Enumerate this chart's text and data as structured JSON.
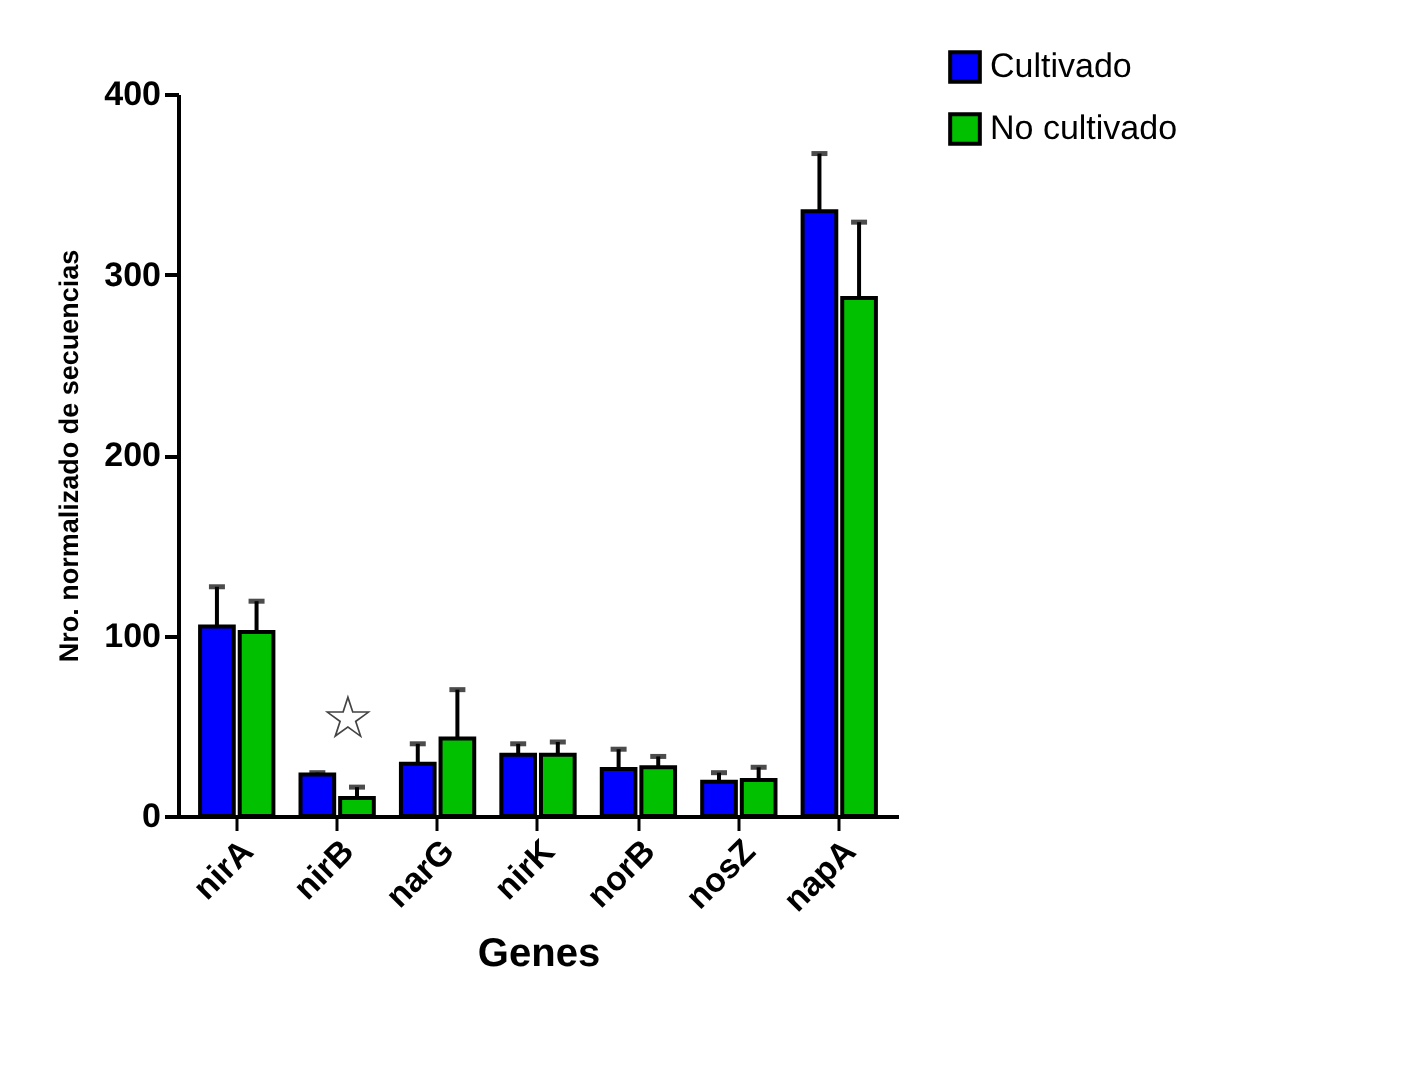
{
  "chart_data": {
    "type": "bar",
    "xlabel": "Genes",
    "ylabel": "Nro. normalizado de secuencias",
    "categories": [
      "nirA",
      "nirB",
      "narG",
      "nirK",
      "norB",
      "nosZ",
      "napA"
    ],
    "series": [
      {
        "name": "Cultivado",
        "color": "#0000ff",
        "values": [
          105,
          23,
          29,
          34,
          26,
          19,
          335
        ],
        "errors": [
          [
            105,
            127
          ],
          [
            23,
            24
          ],
          [
            29,
            40
          ],
          [
            34,
            40
          ],
          [
            26,
            37
          ],
          [
            19,
            24
          ],
          [
            335,
            367
          ]
        ]
      },
      {
        "name": "No cultivado",
        "color": "#00c000",
        "values": [
          102,
          10,
          43,
          34,
          27,
          20,
          287
        ],
        "errors": [
          [
            102,
            119
          ],
          [
            10,
            16
          ],
          [
            43,
            70
          ],
          [
            34,
            41
          ],
          [
            27,
            33
          ],
          [
            20,
            27
          ],
          [
            287,
            329
          ]
        ]
      }
    ],
    "ylim": [
      0,
      400
    ],
    "yticks": [
      0,
      100,
      200,
      300,
      400
    ],
    "grid": false,
    "legend": "top right",
    "annotations": [
      "☆"
    ]
  }
}
